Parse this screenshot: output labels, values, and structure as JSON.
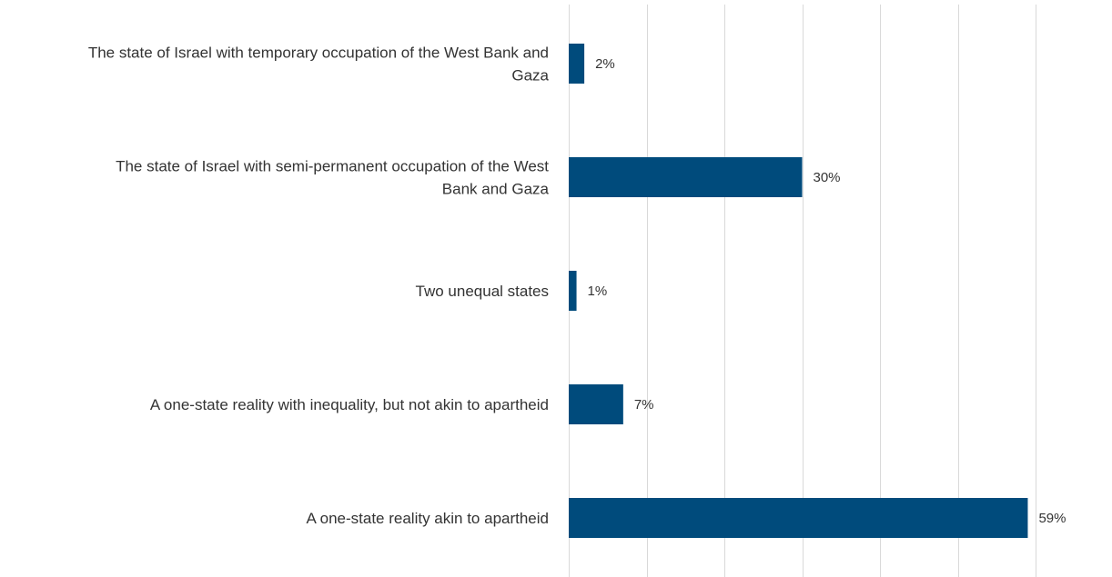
{
  "chart_data": {
    "type": "bar",
    "orientation": "horizontal",
    "categories": [
      "The state of Israel with temporary occupation of the West Bank and Gaza",
      "The state of Israel with semi-permanent occupation of the West Bank and Gaza",
      "Two unequal states",
      "A one-state reality with inequality, but not akin to apartheid",
      "A one-state reality akin to apartheid"
    ],
    "category_lines": [
      [
        "The state of Israel with temporary occupation of the West Bank and",
        "Gaza"
      ],
      [
        "The state of Israel with semi-permanent occupation of the West",
        "Bank and Gaza"
      ],
      [
        "Two unequal states"
      ],
      [
        "A one-state reality with inequality, but not akin to apartheid"
      ],
      [
        "A one-state reality akin to apartheid"
      ]
    ],
    "values": [
      2,
      30,
      1,
      7,
      59
    ],
    "value_labels": [
      "2%",
      "30%",
      "1%",
      "7%",
      "59%"
    ],
    "xlim": [
      0,
      70
    ],
    "grid": true,
    "title": "",
    "xlabel": "",
    "ylabel": "",
    "colors": {
      "bar": "#004b7c",
      "grid": "#d9d9d9",
      "text": "#333333"
    }
  }
}
